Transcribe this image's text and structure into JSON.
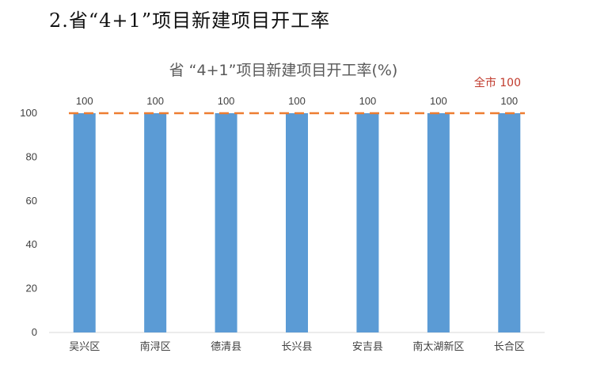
{
  "page": {
    "heading": "2.省“4+1”项目新建项目开工率"
  },
  "colors": {
    "bar": "#5b9bd5",
    "reference_line": "#ed7d31",
    "reference_label": "#c0392b",
    "axis": "#d9d9d9"
  },
  "chart_data": {
    "type": "bar",
    "title": "省 “4+1”项目新建项目开工率(%)",
    "xlabel": "",
    "ylabel": "",
    "categories": [
      "吴兴区",
      "南浔区",
      "德清县",
      "长兴县",
      "安吉县",
      "南太湖新区",
      "长合区"
    ],
    "values": [
      100,
      100,
      100,
      100,
      100,
      100,
      100
    ],
    "ylim": [
      0,
      100
    ],
    "yticks": [
      0,
      20,
      40,
      60,
      80,
      100
    ],
    "grid": false,
    "legend": "none",
    "reference_line": {
      "value": 100,
      "label": "全市 100",
      "style": "dashed"
    }
  }
}
